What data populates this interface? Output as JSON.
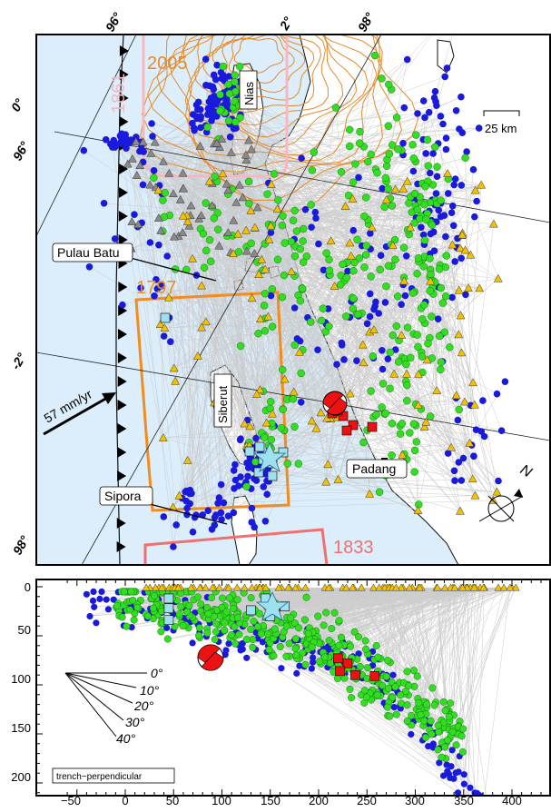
{
  "map": {
    "labels": {
      "nias": "Nias",
      "pulau_batu": "Pulau Batu",
      "siberut": "Siberut",
      "sipora": "Sipora",
      "padang": "Padang",
      "y2005": "2005",
      "y1861": "1861",
      "y1797": "1797",
      "y1833": "1833",
      "scale": "25 km",
      "velocity": "57 mm/yr",
      "north": "N"
    },
    "graticule": {
      "lon96_top": "96°",
      "lat2_top": "2°",
      "lon98_top": "98°",
      "lat0_left": "0°",
      "lon96_left": "96°",
      "lat_2_left": "-2°",
      "lon98_left": "98°"
    }
  },
  "section": {
    "angle_labels": [
      "0°",
      "10°",
      "20°",
      "30°",
      "40°"
    ],
    "box_label": "trench−perpendicular",
    "x_ticks": [
      "−50",
      "0",
      "50",
      "100",
      "150",
      "200",
      "250",
      "300",
      "350",
      "400"
    ],
    "y_ticks": [
      "0",
      "50",
      "100",
      "150",
      "200"
    ]
  },
  "colors": {
    "sea": "#dceefb",
    "land": "#ffffff",
    "ray": "#c8c8c8",
    "event_blue": "#1a1adc",
    "event_green": "#33dd22",
    "station_yellow": "#f2c200",
    "station_gray": "#8a8a8a",
    "square_red": "#ee1111",
    "square_cyan": "#9fe0ef",
    "contour_orange": "#e58a2a",
    "rupture_1797": "#f28c1e",
    "rupture_1833": "#f07070",
    "rupture_1861": "#f7b7c0"
  }
}
